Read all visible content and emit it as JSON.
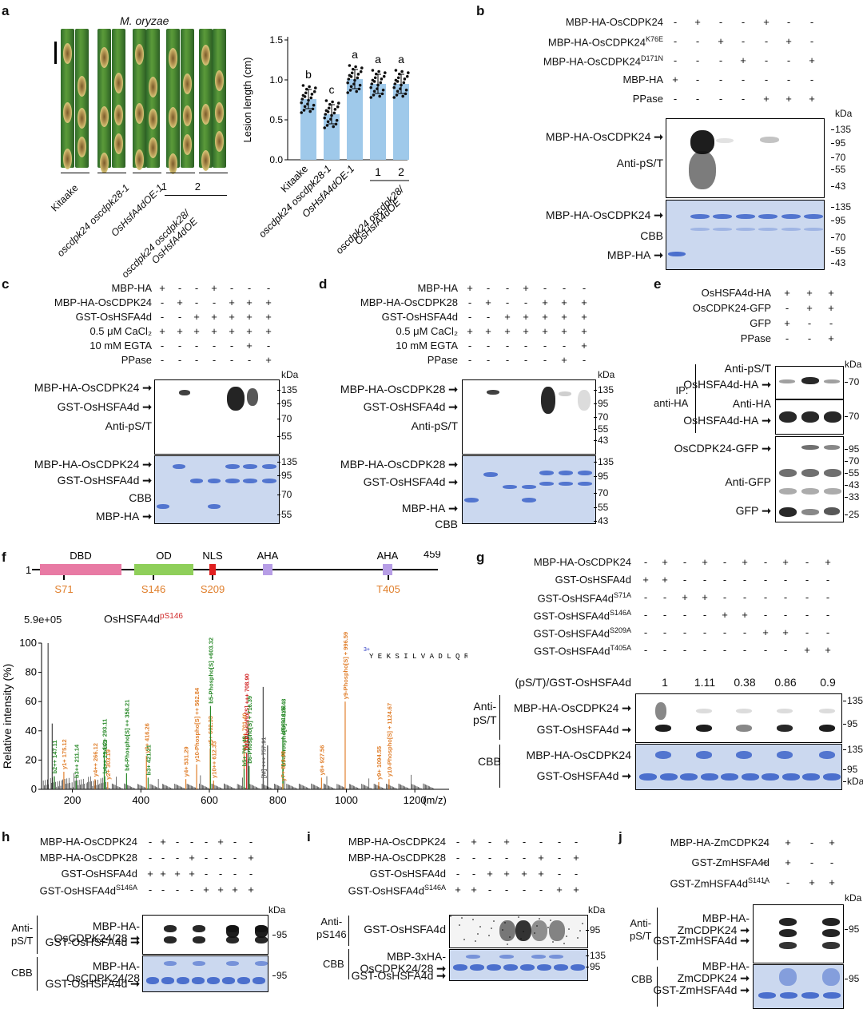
{
  "panel_letters": {
    "a": "a",
    "b": "b",
    "c": "c",
    "d": "d",
    "e": "e",
    "f": "f",
    "g": "g",
    "h": "h",
    "i": "i",
    "j": "j"
  },
  "a": {
    "title": "M. oryzae",
    "leaf_groups": [
      "Kitaake",
      "oscdpk24 oscdpk28-1",
      "OsHsfA4dOE-1",
      "1",
      "2",
      "oscdpk24 oscdpk28/\nOsHsfA4dOE"
    ],
    "chart_data": {
      "type": "bar",
      "categories": [
        "Kitaake",
        "oscdpk24 oscdpk28-1",
        "OsHsfA4dOE-1",
        "oscdpk24 oscdpk28/OsHsfA4dOE 1",
        "oscdpk24 oscdpk28/OsHsfA4dOE 2"
      ],
      "values": [
        0.76,
        0.57,
        1.01,
        0.95,
        0.95
      ],
      "letters": [
        "b",
        "c",
        "a",
        "a",
        "a"
      ],
      "ylabel": "Lesion length (cm)",
      "yticks": [
        "0.0",
        "0.5",
        "1.0",
        "1.5"
      ],
      "ylim": [
        0,
        1.5
      ]
    },
    "x_labels": [
      "Kitaake",
      "oscdpk24 oscdpk28-1",
      "OsHsfA4dOE-1",
      "1",
      "2",
      "oscdpk24 oscdpk28/\nOsHsfA4dOE"
    ]
  },
  "b": {
    "rows": [
      {
        "label": "MBP-HA-OsCDPK24",
        "sup": "",
        "syms": [
          "-",
          "+",
          "-",
          "-",
          "+",
          "-",
          "-"
        ]
      },
      {
        "label": "MBP-HA-OsCDPK24",
        "sup": "K76E",
        "syms": [
          "-",
          "-",
          "+",
          "-",
          "-",
          "+",
          "-"
        ]
      },
      {
        "label": "MBP-HA-OsCDPK24",
        "sup": "D171N",
        "syms": [
          "-",
          "-",
          "-",
          "+",
          "-",
          "-",
          "+"
        ]
      },
      {
        "label": "MBP-HA",
        "sup": "",
        "syms": [
          "+",
          "-",
          "-",
          "-",
          "-",
          "-",
          "-"
        ]
      },
      {
        "label": "PPase",
        "sup": "",
        "syms": [
          "-",
          "-",
          "-",
          "-",
          "+",
          "+",
          "+"
        ]
      }
    ],
    "kda": "kDa",
    "blot_markers": [
      "135",
      "95",
      "70",
      "55",
      "43"
    ],
    "cbb_markers": [
      "135",
      "95",
      "70",
      "55",
      "43"
    ],
    "blot_labels": [
      "MBP-HA-OsCDPK24",
      "Anti-pS/T"
    ],
    "cbb_labels": [
      "MBP-HA-OsCDPK24",
      "CBB",
      "MBP-HA"
    ]
  },
  "c": {
    "rows": [
      {
        "label": "MBP-HA",
        "syms": [
          "+",
          "-",
          "-",
          "+",
          "-",
          "-",
          "-"
        ]
      },
      {
        "label": "MBP-HA-OsCDPK24",
        "syms": [
          "-",
          "+",
          "-",
          "-",
          "+",
          "+",
          "+"
        ]
      },
      {
        "label": "GST-OsHSFA4d",
        "syms": [
          "-",
          "-",
          "+",
          "+",
          "+",
          "+",
          "+"
        ]
      },
      {
        "label": "0.5 μM CaCl₂",
        "syms": [
          "+",
          "+",
          "+",
          "+",
          "+",
          "+",
          "+"
        ]
      },
      {
        "label": "10 mM EGTA",
        "syms": [
          "-",
          "-",
          "-",
          "-",
          "-",
          "+",
          "-"
        ]
      },
      {
        "label": "PPase",
        "syms": [
          "-",
          "-",
          "-",
          "-",
          "-",
          "-",
          "+"
        ]
      }
    ],
    "kda": "kDa",
    "blot_markers": [
      "135",
      "95",
      "70",
      "55"
    ],
    "cbb_markers": [
      "135",
      "95",
      "70",
      "55"
    ],
    "blot_labels": [
      "MBP-HA-OsCDPK24",
      "GST-OsHSFA4d",
      "Anti-pS/T"
    ],
    "cbb_labels": [
      "MBP-HA-OsCDPK24",
      "GST-OsHSFA4d",
      "CBB",
      "MBP-HA"
    ]
  },
  "d": {
    "rows": [
      {
        "label": "MBP-HA",
        "syms": [
          "+",
          "-",
          "-",
          "+",
          "-",
          "-",
          "-"
        ]
      },
      {
        "label": "MBP-HA-OsCDPK28",
        "syms": [
          "-",
          "+",
          "-",
          "-",
          "+",
          "+",
          "+"
        ]
      },
      {
        "label": "GST-OsHSFA4d",
        "syms": [
          "-",
          "-",
          "+",
          "+",
          "+",
          "+",
          "+"
        ]
      },
      {
        "label": "0.5 μM CaCl₂",
        "syms": [
          "+",
          "+",
          "+",
          "+",
          "+",
          "+",
          "+"
        ]
      },
      {
        "label": "10 mM EGTA",
        "syms": [
          "-",
          "-",
          "-",
          "-",
          "-",
          "-",
          "+"
        ]
      },
      {
        "label": "PPase",
        "syms": [
          "-",
          "-",
          "-",
          "-",
          "-",
          "+",
          "-"
        ]
      }
    ],
    "kda": "kDa",
    "blot_markers": [
      "135",
      "95",
      "70",
      "55",
      "43"
    ],
    "cbb_markers": [
      "135",
      "95",
      "70",
      "55",
      "43"
    ],
    "blot_labels": [
      "MBP-HA-OsCDPK28",
      "GST-OsHSFA4d",
      "Anti-pS/T"
    ],
    "cbb_labels": [
      "MBP-HA-OsCDPK28",
      "GST-OsHSFA4d",
      "MBP-HA",
      "CBB"
    ]
  },
  "e": {
    "rows": [
      {
        "label": "OsHSFA4d-HA",
        "syms": [
          "+",
          "+",
          "+"
        ]
      },
      {
        "label": "OsCDPK24-GFP",
        "syms": [
          "-",
          "+",
          "+"
        ]
      },
      {
        "label": "GFP",
        "syms": [
          "+",
          "-",
          "-"
        ]
      },
      {
        "label": "PPase",
        "syms": [
          "-",
          "-",
          "+"
        ]
      }
    ],
    "kda": "kDa",
    "ip_label": "IP:\nanti-HA",
    "blot1_labels": [
      "Anti-pS/T",
      "OsHSFA4d-HA"
    ],
    "blot2_labels": [
      "Anti-HA",
      "OsHSFA4d-HA"
    ],
    "blot3_labels": [
      "OsCDPK24-GFP",
      "Anti-GFP",
      "GFP"
    ],
    "m1": [
      "70"
    ],
    "m2": [
      "70"
    ],
    "m3": [
      "95",
      "70",
      "55",
      "43",
      "33",
      "25"
    ]
  },
  "f": {
    "domain_start": "1",
    "domain_end": "459",
    "domains": [
      "DBD",
      "OD",
      "NLS",
      "AHA",
      "AHA"
    ],
    "sites": [
      "S71",
      "S146",
      "S209",
      "T405"
    ],
    "max_intensity": "5.9e+05",
    "peptide_name": "OsHSFA4d",
    "peptide_sup": "pS146",
    "charge": "3+",
    "peptide_seq": "Y E K S I L V A D L Q R",
    "chart_data": {
      "type": "bar",
      "xlabel": "(m/z)",
      "ylabel": "Relative intensity (%)",
      "xticks": [
        "200",
        "400",
        "600",
        "800",
        "1000",
        "1200"
      ],
      "yticks": [
        "0",
        "20",
        "40",
        "60",
        "80",
        "100"
      ],
      "xlim": [
        110,
        1300
      ],
      "ylim": [
        0,
        100
      ],
      "peaks": [
        {
          "mz": 147.11,
          "i": 9,
          "label": "b2++ 147.11",
          "c": "green"
        },
        {
          "mz": 175.12,
          "i": 12,
          "label": "y1+ 175.12",
          "c": "orange"
        },
        {
          "mz": 211.14,
          "i": 6,
          "label": "b3++ 211.14",
          "c": "green"
        },
        {
          "mz": 266.12,
          "i": 7,
          "label": "y4++ 266.12",
          "c": "orange"
        },
        {
          "mz": 293.11,
          "i": 26,
          "label": "b2+ 293.11",
          "c": "green"
        },
        {
          "mz": 294.61,
          "i": 9,
          "label": "b4++ 294.61",
          "c": "green"
        },
        {
          "mz": 303.19,
          "i": 5,
          "label": "y2+ 303.19",
          "c": "orange"
        },
        {
          "mz": 358.21,
          "i": 11,
          "label": "b6-Phospho[S] ++ 358.21",
          "c": "green"
        },
        {
          "mz": 416.26,
          "i": 23,
          "label": "y3+ 416.26",
          "c": "orange"
        },
        {
          "mz": 421.21,
          "i": 8,
          "label": "b3+ 421.21",
          "c": "green"
        },
        {
          "mz": 531.29,
          "i": 7,
          "label": "y4+ 531.29",
          "c": "orange"
        },
        {
          "mz": 562.84,
          "i": 17,
          "label": "y10-Phospho[S] ++ 562.84",
          "c": "orange"
        },
        {
          "mz": 602.33,
          "i": 28,
          "label": "y5+ 602.33",
          "c": "orange"
        },
        {
          "mz": 603.32,
          "i": 57,
          "label": "b5-Phospho[S] +603.32",
          "c": "green"
        },
        {
          "mz": 612.33,
          "i": 6,
          "label": "y10++ 612.33",
          "c": "orange"
        },
        {
          "mz": 701.4,
          "i": 30,
          "label": "y6+ 701.40",
          "c": "orange"
        },
        {
          "mz": 701.48,
          "i": 14,
          "label": "b5+ 701.48",
          "c": "green"
        },
        {
          "mz": 708.9,
          "i": 25,
          "label": "[M]-Phospho[S] +++ 708.90",
          "c": "red"
        },
        {
          "mz": 716.39,
          "i": 16,
          "label": "b6-Phospho[S] + 716.39",
          "c": "green"
        },
        {
          "mz": 757.91,
          "i": 6,
          "label": "[M] +++ 757.91",
          "c": "gray"
        },
        {
          "mz": 814.48,
          "i": 36,
          "label": "b6+814.48",
          "c": "green"
        },
        {
          "mz": 815.48,
          "i": 14,
          "label": "b7-Phospho[S] + 815.48",
          "c": "green"
        },
        {
          "mz": 814.48,
          "i": 4,
          "label": "y7+ 814.48",
          "c": "orange"
        },
        {
          "mz": 927.56,
          "i": 8,
          "label": "y8+ 927.56",
          "c": "orange"
        },
        {
          "mz": 996.59,
          "i": 60,
          "label": "y9-Phospho[S] + 996.59",
          "c": "orange"
        },
        {
          "mz": 1094.55,
          "i": 5,
          "label": "y9+ 1094.55",
          "c": "orange"
        },
        {
          "mz": 1124.67,
          "i": 7,
          "label": "y10-Phospho[S] + 1124.67",
          "c": "orange"
        }
      ]
    }
  },
  "g": {
    "rows": [
      {
        "label": "MBP-HA-OsCDPK24",
        "sup": "",
        "syms": [
          "-",
          "+",
          "-",
          "+",
          "-",
          "+",
          "-",
          "+",
          "-",
          "+"
        ]
      },
      {
        "label": "GST-OsHSFA4d",
        "sup": "",
        "syms": [
          "+",
          "+",
          "-",
          "-",
          "-",
          "-",
          "-",
          "-",
          "-",
          "-"
        ]
      },
      {
        "label": "GST-OsHSFA4d",
        "sup": "S71A",
        "syms": [
          "-",
          "-",
          "+",
          "+",
          "-",
          "-",
          "-",
          "-",
          "-",
          "-"
        ]
      },
      {
        "label": "GST-OsHSFA4d",
        "sup": "S146A",
        "syms": [
          "-",
          "-",
          "-",
          "-",
          "+",
          "+",
          "-",
          "-",
          "-",
          "-"
        ]
      },
      {
        "label": "GST-OsHSFA4d",
        "sup": "S209A",
        "syms": [
          "-",
          "-",
          "-",
          "-",
          "-",
          "-",
          "+",
          "+",
          "-",
          "-"
        ]
      },
      {
        "label": "GST-OsHSFA4d",
        "sup": "T405A",
        "syms": [
          "-",
          "-",
          "-",
          "-",
          "-",
          "-",
          "-",
          "-",
          "+",
          "+"
        ]
      }
    ],
    "ratio_label": "(pS/T)/GST-OsHSFA4d",
    "ratios": [
      "1",
      "1.11",
      "0.38",
      "0.86",
      "0.9"
    ],
    "anti_label": "Anti-\npS/T",
    "cbb_label": "CBB",
    "blot_labels": [
      "MBP-HA-OsCDPK24",
      "GST-OsHSFA4d"
    ],
    "cbb_labels": [
      "MBP-HA-OsCDPK24",
      "GST-OsHSFA4d"
    ],
    "markers": [
      "135",
      "95"
    ],
    "cbb_markers": [
      "135",
      "95",
      "kDa"
    ]
  },
  "h": {
    "rows": [
      {
        "label": "MBP-HA-OsCDPK24",
        "sup": "",
        "syms": [
          "-",
          "+",
          "-",
          "-",
          "-",
          "+",
          "-",
          "-"
        ]
      },
      {
        "label": "MBP-HA-OsCDPK28",
        "sup": "",
        "syms": [
          "-",
          "-",
          "-",
          "+",
          "-",
          "-",
          "-",
          "+"
        ]
      },
      {
        "label": "GST-OsHSFA4d",
        "sup": "",
        "syms": [
          "+",
          "+",
          "+",
          "+",
          "-",
          "-",
          "-",
          "-"
        ]
      },
      {
        "label": "GST-OsHSFA4d",
        "sup": "S146A",
        "syms": [
          "-",
          "-",
          "-",
          "-",
          "+",
          "+",
          "+",
          "+"
        ]
      }
    ],
    "kda": "kDa",
    "anti_label": "Anti-\npS/T",
    "cbb_label": "CBB",
    "blot_labels": [
      "MBP-HA-\nOsCDPK24/28",
      "GST-OsHSFA4d"
    ],
    "cbb_labels": [
      "MBP-HA-\nOsCDPK24/28",
      "GST-OsHSFA4d"
    ],
    "marker": "95"
  },
  "i": {
    "rows": [
      {
        "label": "MBP-HA-OsCDPK24",
        "sup": "",
        "syms": [
          "-",
          "+",
          "-",
          "+",
          "-",
          "-",
          "-",
          "-"
        ]
      },
      {
        "label": "MBP-HA-OsCDPK28",
        "sup": "",
        "syms": [
          "-",
          "-",
          "-",
          "-",
          "-",
          "+",
          "-",
          "+"
        ]
      },
      {
        "label": "GST-OsHSFA4d",
        "sup": "",
        "syms": [
          "-",
          "-",
          "+",
          "+",
          "+",
          "+",
          "-",
          "-"
        ]
      },
      {
        "label": "GST-OsHSFA4d",
        "sup": "S146A",
        "syms": [
          "+",
          "+",
          "-",
          "-",
          "-",
          "-",
          "+",
          "+"
        ]
      }
    ],
    "kda": "kDa",
    "anti_label": "Anti-\npS146",
    "cbb_label": "CBB",
    "blot_labels": [
      "GST-OsHSFA4d"
    ],
    "cbb_labels": [
      "MBP-3xHA-\nOsCDPK24/28",
      "GST-OsHSFA4d"
    ],
    "markers": [
      "95",
      "135",
      "95"
    ]
  },
  "j": {
    "rows": [
      {
        "label": "MBP-HA-ZmCDPK24",
        "sup": "",
        "syms": [
          "-",
          "+",
          "-",
          "+"
        ]
      },
      {
        "label": "GST-ZmHSFA4d",
        "sup": "",
        "syms": [
          "+",
          "+",
          "-",
          "-"
        ]
      },
      {
        "label": "GST-ZmHSFA4d",
        "sup": "S141A",
        "syms": [
          "-",
          "-",
          "+",
          "+"
        ]
      }
    ],
    "kda": "kDa",
    "anti_label": "Anti-\npS/T",
    "cbb_label": "CBB",
    "blot_labels": [
      "MBP-HA-\nZmCDPK24",
      "GST-ZmHSFA4d"
    ],
    "cbb_labels": [
      "MBP-HA-\nZmCDPK24",
      "GST-ZmHSFA4d"
    ],
    "marker": "95"
  }
}
